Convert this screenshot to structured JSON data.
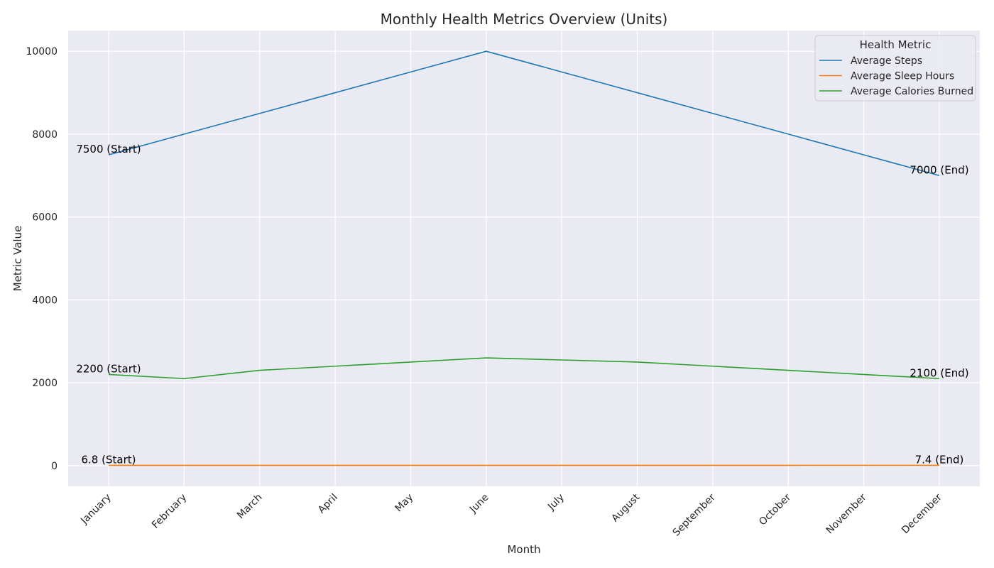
{
  "chart_data": {
    "type": "line",
    "title": "Monthly Health Metrics Overview (Units)",
    "xlabel": "Month",
    "ylabel": "Metric Value",
    "categories": [
      "January",
      "February",
      "March",
      "April",
      "May",
      "June",
      "July",
      "August",
      "September",
      "October",
      "November",
      "December"
    ],
    "ylim": [
      -500,
      10500
    ],
    "yticks": [
      0,
      2000,
      4000,
      6000,
      8000,
      10000
    ],
    "grid": true,
    "background": "#eaeaf2",
    "legend": {
      "title": "Health Metric",
      "placement": "top-right"
    },
    "series": [
      {
        "name": "Average Steps",
        "color": "#1f77b4",
        "values": [
          7500,
          8000,
          8500,
          9000,
          9500,
          10000,
          9500,
          9000,
          8500,
          8000,
          7500,
          7000
        ]
      },
      {
        "name": "Average Sleep Hours",
        "color": "#ff7f0e",
        "values": [
          6.8,
          7.0,
          7.1,
          7.2,
          7.0,
          7.3,
          7.4,
          7.2,
          7.1,
          7.3,
          7.5,
          7.4
        ]
      },
      {
        "name": "Average Calories Burned",
        "color": "#2ca02c",
        "values": [
          2200,
          2100,
          2300,
          2400,
          2500,
          2600,
          2550,
          2500,
          2400,
          2300,
          2200,
          2100
        ]
      }
    ],
    "annotations": [
      {
        "text": "7500 (Start)",
        "series": 0,
        "index": 0
      },
      {
        "text": "7000 (End)",
        "series": 0,
        "index": 11
      },
      {
        "text": "6.8 (Start)",
        "series": 1,
        "index": 0
      },
      {
        "text": "7.4 (End)",
        "series": 1,
        "index": 11
      },
      {
        "text": "2200 (Start)",
        "series": 2,
        "index": 0
      },
      {
        "text": "2100 (End)",
        "series": 2,
        "index": 11
      }
    ]
  }
}
